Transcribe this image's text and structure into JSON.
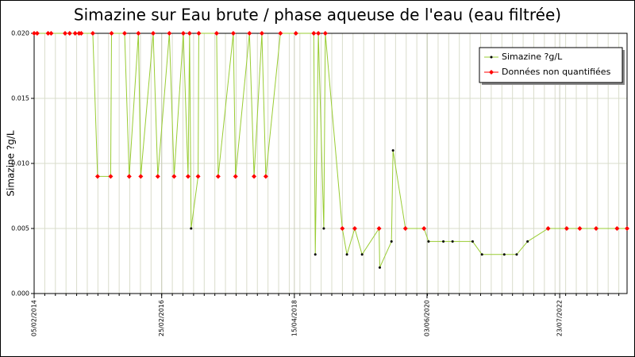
{
  "chart_data": {
    "type": "line",
    "title": "Simazine sur Eau brute / phase aqueuse de l'eau (eau filtrée)",
    "y_label": "Simazine ?g/L",
    "x": [
      "05/02/2014",
      "23/02/2014",
      "28/04/2014",
      "16/05/2014",
      "06/08/2014",
      "02/09/2014",
      "04/10/2014",
      "27/10/2014",
      "09/11/2014",
      "16/01/2015",
      "13/02/2015",
      "01/05/2015",
      "06/05/2015",
      "22/07/2015",
      "18/08/2015",
      "11/10/2015",
      "25/10/2015",
      "06/01/2016",
      "02/02/2016",
      "10/04/2016",
      "08/05/2016",
      "01/07/2016",
      "29/07/2016",
      "07/08/2016",
      "16/08/2016",
      "26/09/2016",
      "30/09/2016",
      "13/01/2017",
      "22/01/2017",
      "21/04/2017",
      "04/05/2017",
      "25/07/2017",
      "21/08/2017",
      "06/10/2017",
      "29/10/2017",
      "23/01/2018",
      "24/04/2018",
      "07/08/2018",
      "16/08/2018",
      "03/09/2018",
      "05/10/2018",
      "14/10/2018",
      "22/01/2019",
      "18/02/2019",
      "05/04/2019",
      "18/05/2019",
      "26/08/2019",
      "30/08/2019",
      "07/11/2019",
      "16/11/2019",
      "28/01/2020",
      "16/05/2020",
      "12/06/2020",
      "07/09/2020",
      "31/10/2020",
      "26/02/2021",
      "22/04/2021",
      "31/08/2021",
      "12/11/2021",
      "15/01/2022",
      "16/05/2022",
      "02/09/2022",
      "18/11/2022",
      "22/02/2023",
      "25/06/2023",
      "23/08/2023"
    ],
    "series": [
      {
        "name": "Simazine ?g/L",
        "color": "#99cc33",
        "marker_color": "#000000",
        "values": [
          0.02,
          0.02,
          0.02,
          0.02,
          0.02,
          0.02,
          0.02,
          0.02,
          0.02,
          0.02,
          0.009,
          0.009,
          0.02,
          0.02,
          0.009,
          0.02,
          0.009,
          0.02,
          0.009,
          0.02,
          0.009,
          0.02,
          0.009,
          0.02,
          0.005,
          0.009,
          0.02,
          0.02,
          0.009,
          0.02,
          0.009,
          0.02,
          0.009,
          0.02,
          0.009,
          0.02,
          0.02,
          0.02,
          0.003,
          0.02,
          0.005,
          0.02,
          0.005,
          0.003,
          0.005,
          0.003,
          0.005,
          0.002,
          0.004,
          0.011,
          0.005,
          0.005,
          0.004,
          0.004,
          0.004,
          0.004,
          0.003,
          0.003,
          0.003,
          0.004,
          0.005,
          0.005,
          0.005,
          0.005,
          0.005,
          0.005
        ]
      },
      {
        "name": "Données non quantifiées",
        "color": "#ff0000",
        "values": [
          0.02,
          0.02,
          0.02,
          0.02,
          0.02,
          0.02,
          0.02,
          0.02,
          0.02,
          0.02,
          0.009,
          0.009,
          0.02,
          0.02,
          0.009,
          0.02,
          0.009,
          0.02,
          0.009,
          0.02,
          0.009,
          0.02,
          0.009,
          0.02,
          null,
          0.009,
          0.02,
          0.02,
          0.009,
          0.02,
          0.009,
          0.02,
          0.009,
          0.02,
          0.009,
          0.02,
          0.02,
          0.02,
          null,
          0.02,
          null,
          0.02,
          0.005,
          null,
          0.005,
          null,
          0.005,
          null,
          null,
          null,
          0.005,
          0.005,
          null,
          null,
          null,
          null,
          null,
          null,
          null,
          null,
          0.005,
          0.005,
          0.005,
          0.005,
          0.005,
          0.005
        ]
      }
    ],
    "xlim": [
      "05/02/2014",
      "23/08/2023"
    ],
    "xticks": [
      "05/02/2014",
      "25/02/2016",
      "15/04/2018",
      "03/06/2020",
      "23/07/2022"
    ],
    "x_minor_divisions": 12,
    "ylim": [
      0,
      0.02
    ],
    "yticks": [
      {
        "value": 0,
        "label": "0.000"
      },
      {
        "value": 0.005,
        "label": "0.005"
      },
      {
        "value": 0.01,
        "label": "0.010"
      },
      {
        "value": 0.015,
        "label": "0.015"
      },
      {
        "value": 0.02,
        "label": "0.020"
      }
    ],
    "grid": true,
    "legend": "top-right"
  }
}
